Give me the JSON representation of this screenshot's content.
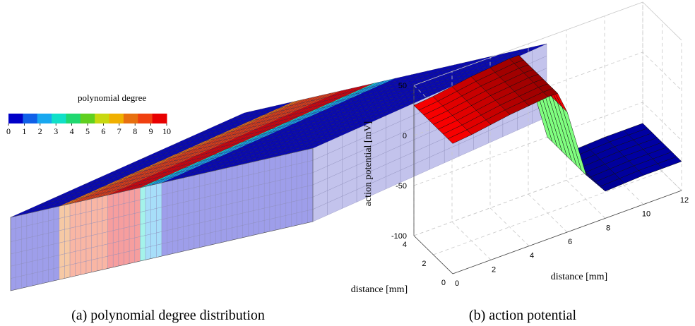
{
  "chart_data": [
    {
      "type": "heatmap",
      "caption": "(a) polynomial degree distribution",
      "colorbar": {
        "title": "polynomial degree",
        "ticks": [
          "0",
          "1",
          "2",
          "3",
          "4",
          "5",
          "6",
          "7",
          "8",
          "9",
          "10"
        ],
        "colors": [
          "#0000C8",
          "#1060E8",
          "#18A8F0",
          "#10E0C8",
          "#20D870",
          "#60D020",
          "#C8D810",
          "#F0B000",
          "#E87010",
          "#F04010",
          "#E80000"
        ]
      },
      "top_face_degrees": [
        0,
        0,
        0,
        0,
        0,
        0,
        0,
        0,
        0,
        8,
        8,
        9,
        9,
        9,
        9,
        9,
        9,
        9,
        10,
        10,
        10,
        10,
        10,
        10,
        3,
        2,
        2,
        2,
        0,
        0,
        0,
        0,
        0,
        0,
        0,
        0,
        0,
        0,
        0,
        0,
        0,
        0,
        0,
        0,
        0,
        0,
        0,
        0,
        0,
        0,
        0,
        0,
        0,
        0,
        0,
        0
      ]
    },
    {
      "type": "surface",
      "caption": "(b) action potential",
      "zlabel": "action potential [mV]",
      "xlabel": "distance [mm]",
      "ylabel": "distance [mm]",
      "zticks": [
        "-100",
        "-50",
        "0",
        "50"
      ],
      "xticks": [
        "2",
        "4",
        "6",
        "8",
        "10",
        "12"
      ],
      "yticks": [
        "0",
        "2",
        "4"
      ],
      "origin_label": "0",
      "xlim": [
        0,
        12
      ],
      "ylim": [
        0,
        4
      ],
      "zlim": [
        -100,
        50
      ],
      "x": [
        0,
        1,
        2,
        3,
        4,
        5,
        5.5,
        6,
        7,
        8,
        9,
        10,
        11,
        12
      ],
      "z": [
        30,
        32,
        35,
        38,
        40,
        42,
        42,
        20,
        -50,
        -73,
        -72,
        -71,
        -71,
        -71
      ],
      "colormap": "jet",
      "grid": "on"
    }
  ]
}
